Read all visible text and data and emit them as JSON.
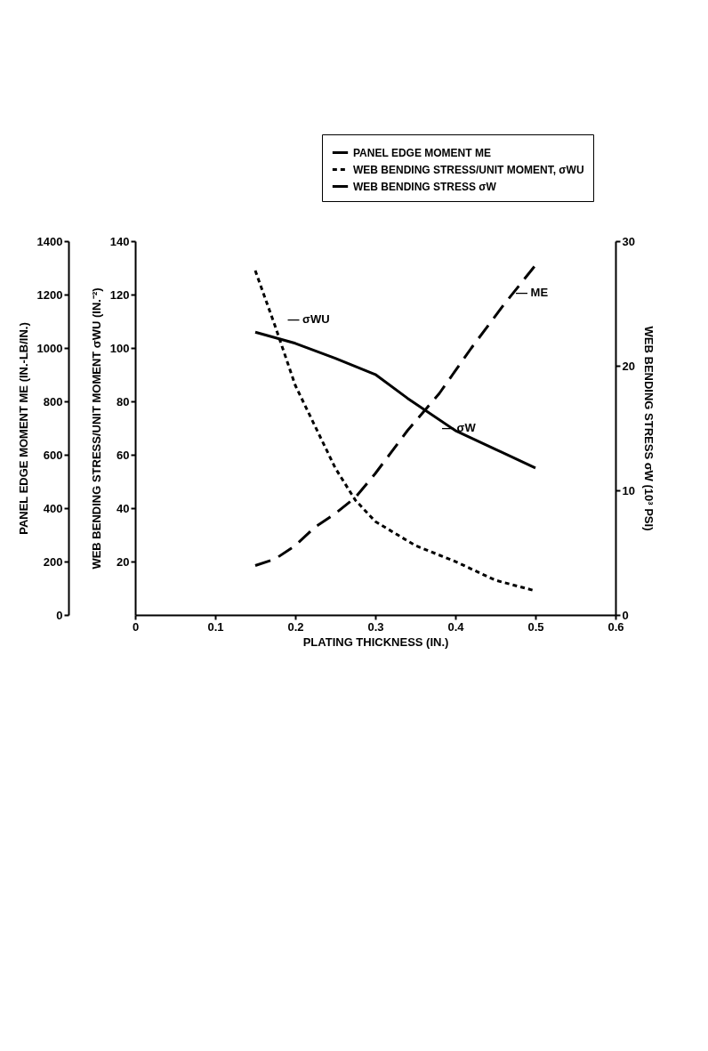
{
  "chart_data": {
    "type": "line",
    "xlabel": "PLATING THICKNESS (IN.)",
    "ylabel": "PANEL EDGE MOMENT ME (IN.-LB/IN.)",
    "y2label": "WEB BENDING STRESS σW (10³ PSI)",
    "y3label": "WEB BENDING STRESS/UNIT MOMENT σWU (IN.⁻²)",
    "xlim": [
      0,
      0.6
    ],
    "xticks": [
      0,
      0.1,
      0.2,
      0.3,
      0.4,
      0.5,
      0.6
    ],
    "ylim": [
      0,
      1400
    ],
    "yticks": [
      0,
      200,
      400,
      600,
      800,
      1000,
      1200,
      1400
    ],
    "y2lim": [
      0,
      30
    ],
    "y2ticks": [
      0,
      10,
      20,
      30
    ],
    "y3lim": [
      0,
      140
    ],
    "y3ticks": [
      20,
      40,
      60,
      80,
      100,
      120,
      140
    ],
    "x": [
      0.15,
      0.175,
      0.2,
      0.225,
      0.25,
      0.275,
      0.3,
      0.34,
      0.38,
      0.42,
      0.46,
      0.5
    ],
    "series": [
      {
        "name": "PANEL EDGE MOMENT ME",
        "color": "#000000",
        "line_style": "dashed",
        "values": [
          185,
          210,
          260,
          330,
          380,
          440,
          530,
          690,
          830,
          1000,
          1160,
          1310
        ]
      },
      {
        "name": "WEB BENDING STRESS/UNIT MOMENT, σWU",
        "color": "#000000",
        "line_style": "dotted",
        "axis": "y3",
        "x": [
          0.15,
          0.175,
          0.2,
          0.25,
          0.275,
          0.3,
          0.35,
          0.4,
          0.45,
          0.5
        ],
        "values": [
          129,
          108,
          86,
          55,
          43,
          35,
          26,
          20,
          13,
          9
        ]
      },
      {
        "name": "WEB BENDING STRESS σW",
        "color": "#000000",
        "line_style": "solid",
        "axis": "y2",
        "x": [
          0.15,
          0.2,
          0.25,
          0.3,
          0.34,
          0.4,
          0.45,
          0.5
        ],
        "values": [
          22.7,
          21.8,
          20.6,
          19.3,
          17.4,
          14.8,
          13.3,
          11.8
        ]
      }
    ],
    "annotations": [
      "— ME",
      "— σWU",
      "— σW"
    ],
    "legend": "top right",
    "grid": false,
    "marker": "none"
  }
}
